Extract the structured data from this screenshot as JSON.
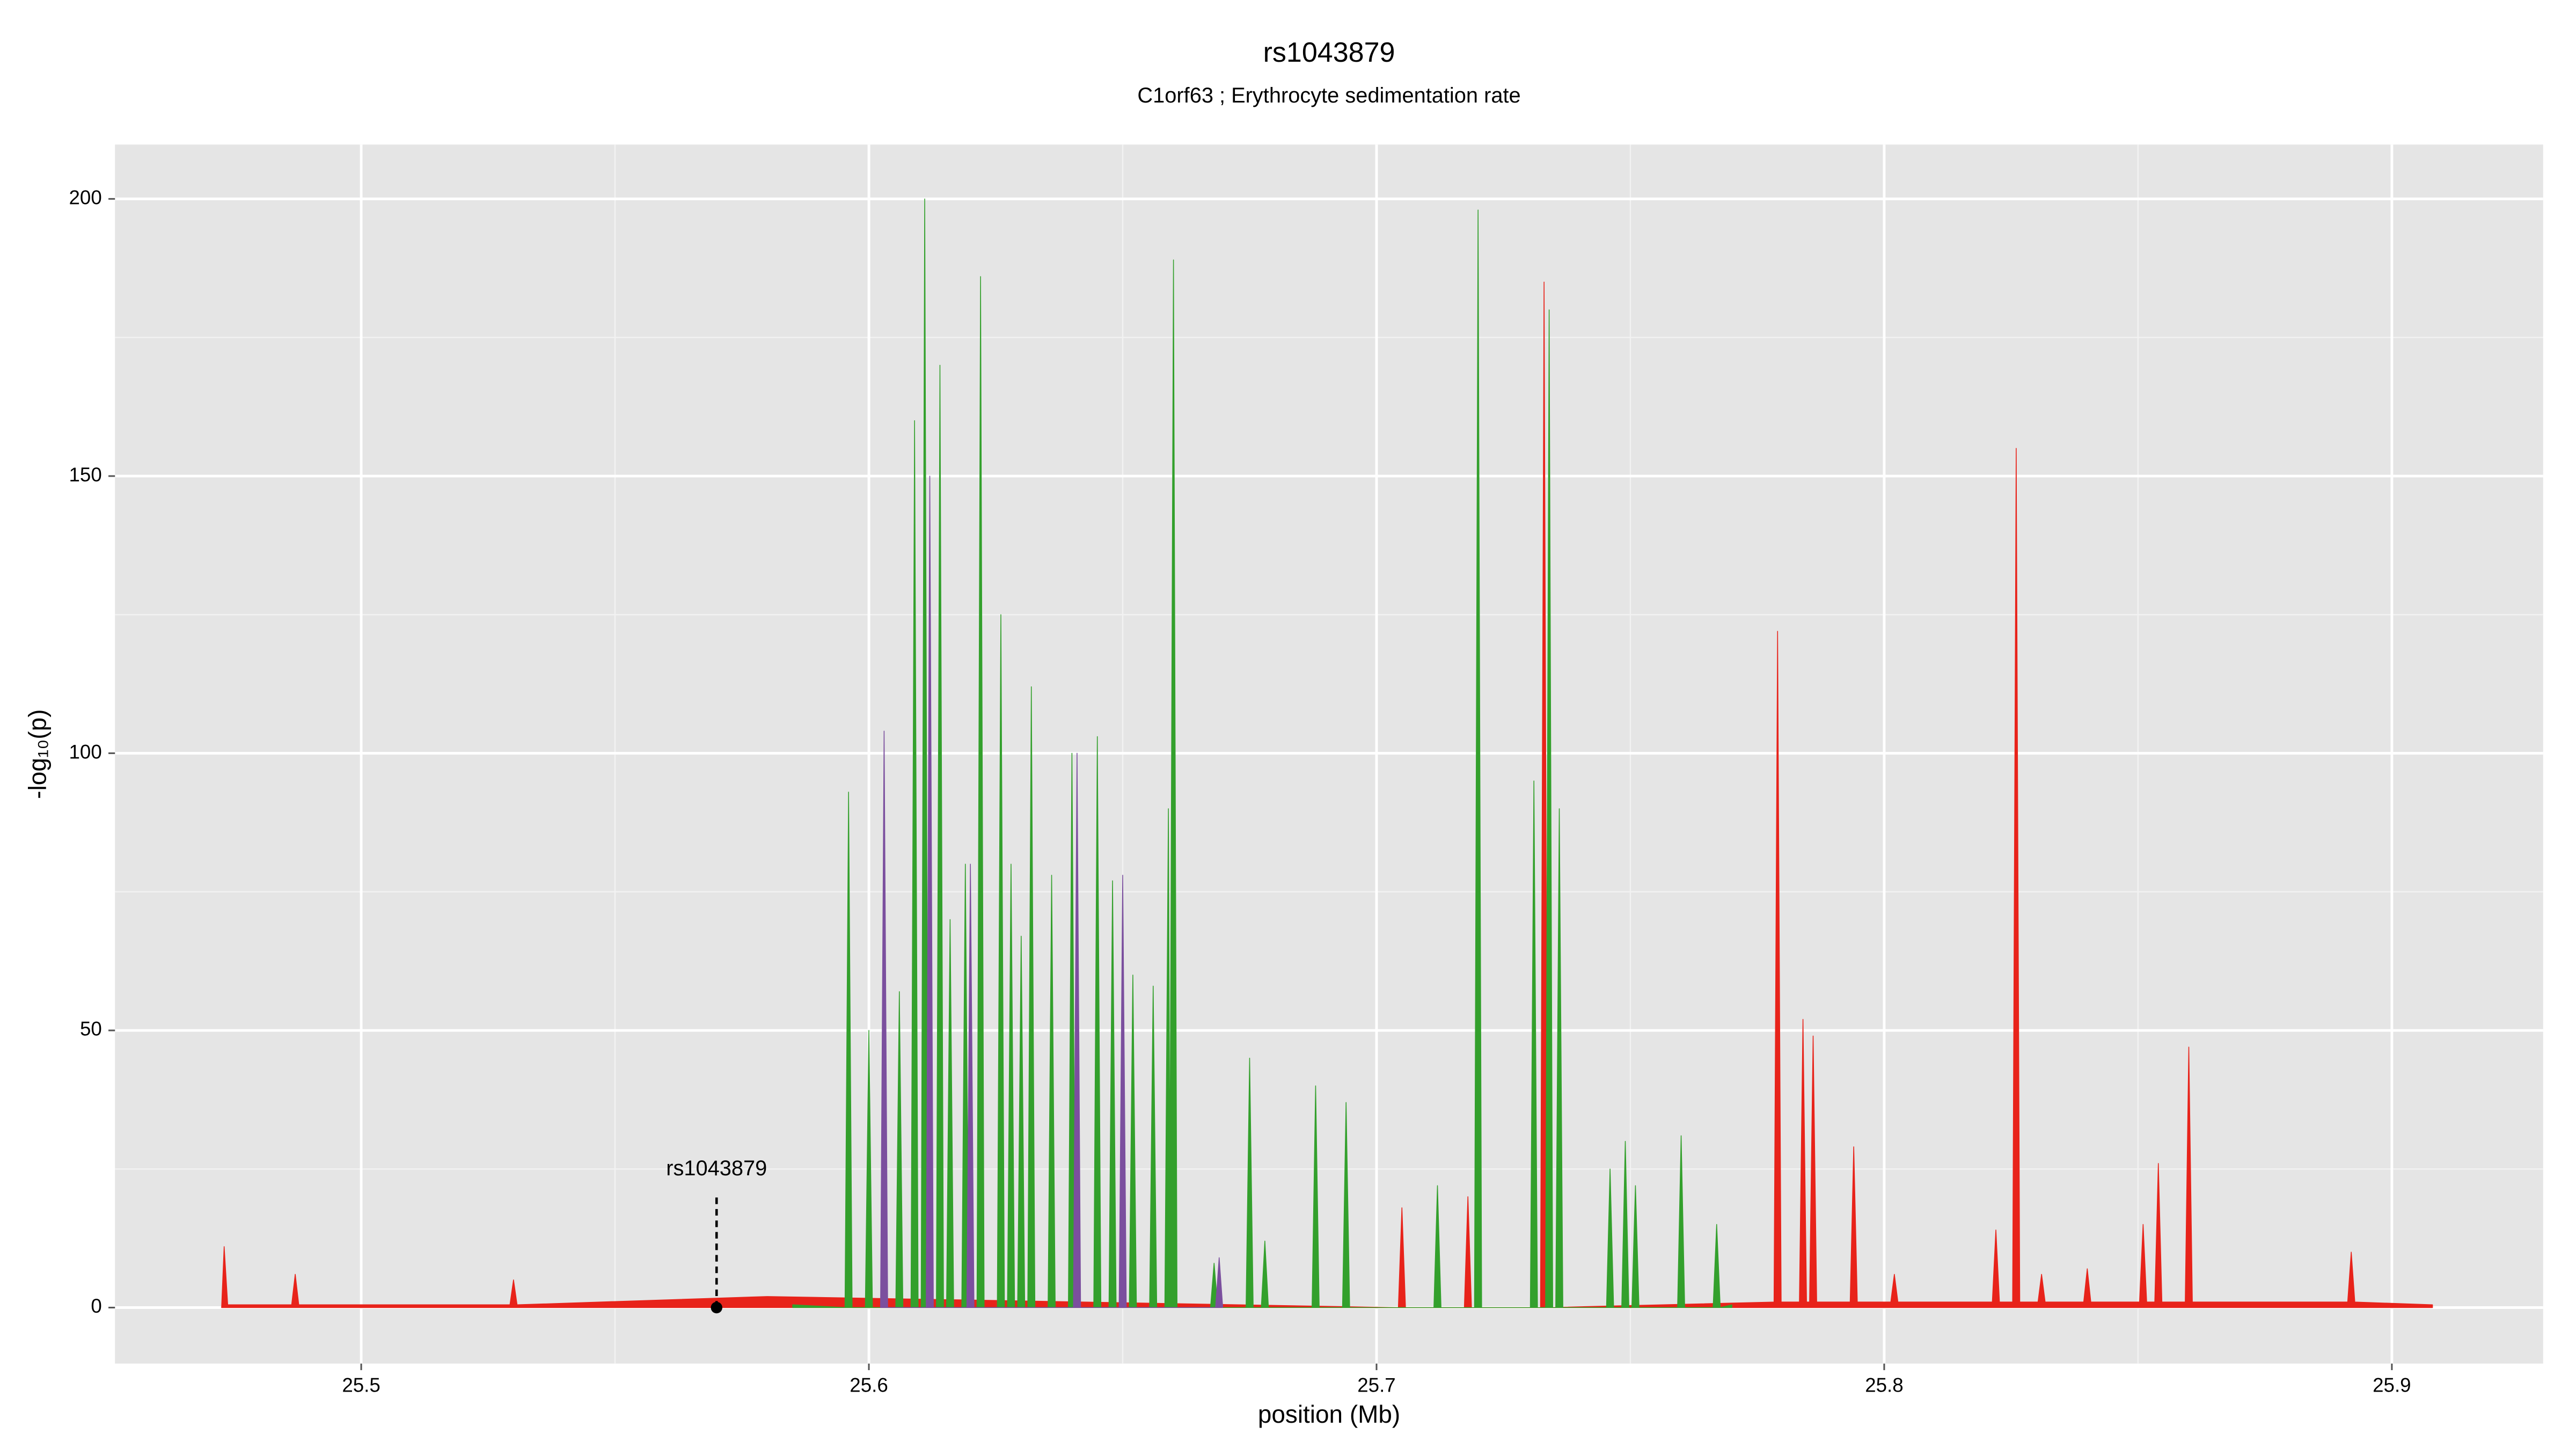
{
  "chart_data": {
    "type": "area",
    "title": "rs1043879",
    "subtitle": "C1orf63 ; Erythrocyte sedimentation rate",
    "x_label": "position (Mb)",
    "y_label": "-log₁₀(p)",
    "xlim": [
      25.4515,
      25.9298
    ],
    "ylim": [
      -10.1,
      209.8
    ],
    "xticks": [
      25.5,
      25.6,
      25.7,
      25.8,
      25.9
    ],
    "yticks": [
      0,
      50,
      100,
      150,
      200
    ],
    "xminorticks": [
      25.55,
      25.65,
      25.75,
      25.85
    ],
    "yminorticks": [
      25,
      75,
      125,
      175
    ],
    "grid": true,
    "series": [
      {
        "color": "#e8231a",
        "x": [
          25.4725,
          25.473,
          25.4737,
          25.4863,
          25.487,
          25.4877,
          25.5293,
          25.53,
          25.5307,
          25.58,
          25.7043,
          25.705,
          25.7057,
          25.7173,
          25.718,
          25.7187,
          25.7323,
          25.733,
          25.7337,
          25.7783,
          25.779,
          25.7797,
          25.7833,
          25.784,
          25.7847,
          25.7853,
          25.786,
          25.7867,
          25.7933,
          25.794,
          25.7947,
          25.8013,
          25.802,
          25.8027,
          25.8213,
          25.822,
          25.8227,
          25.8253,
          25.826,
          25.8267,
          25.8303,
          25.831,
          25.8317,
          25.8393,
          25.84,
          25.8407,
          25.8503,
          25.851,
          25.8517,
          25.8533,
          25.854,
          25.8547,
          25.8593,
          25.86,
          25.8607,
          25.8913,
          25.892,
          25.8927,
          25.908
        ],
        "values": [
          0,
          11,
          0.5,
          0.5,
          6,
          0.5,
          0.5,
          5,
          0.5,
          2,
          0,
          18,
          0,
          0,
          20,
          0,
          0,
          185,
          0,
          1,
          122,
          1,
          1,
          52,
          1,
          1,
          49,
          1,
          1,
          29,
          1,
          1,
          6,
          1,
          1,
          14,
          1,
          1,
          155,
          1,
          1,
          6,
          1,
          1,
          7,
          1,
          1,
          15,
          1,
          1,
          26,
          1,
          1,
          47,
          1,
          1,
          10,
          1,
          0.5
        ]
      },
      {
        "color": "#33a02c",
        "x": [
          25.585,
          25.5953,
          25.596,
          25.5967,
          25.5993,
          25.6,
          25.6007,
          25.6053,
          25.606,
          25.6067,
          25.6083,
          25.609,
          25.6097,
          25.6103,
          25.611,
          25.6117,
          25.6133,
          25.614,
          25.6147,
          25.6153,
          25.616,
          25.6167,
          25.6183,
          25.619,
          25.6197,
          25.6213,
          25.622,
          25.6227,
          25.6253,
          25.626,
          25.6267,
          25.6273,
          25.628,
          25.6287,
          25.6293,
          25.63,
          25.6307,
          25.6313,
          25.632,
          25.6327,
          25.6353,
          25.636,
          25.6367,
          25.6393,
          25.64,
          25.6407,
          25.6443,
          25.645,
          25.6457,
          25.6473,
          25.648,
          25.6487,
          25.6513,
          25.652,
          25.6527,
          25.6553,
          25.656,
          25.6567,
          25.6583,
          25.659,
          25.6593,
          25.66,
          25.6607,
          25.6673,
          25.668,
          25.6687,
          25.6743,
          25.675,
          25.6757,
          25.6773,
          25.678,
          25.6787,
          25.6873,
          25.688,
          25.6887,
          25.6933,
          25.694,
          25.6947,
          25.7113,
          25.712,
          25.7127,
          25.7193,
          25.72,
          25.7207,
          25.7303,
          25.731,
          25.7317,
          25.7333,
          25.734,
          25.7347,
          25.7353,
          25.736,
          25.7367,
          25.7453,
          25.746,
          25.7467,
          25.7483,
          25.749,
          25.7497,
          25.7503,
          25.751,
          25.7517,
          25.7593,
          25.76,
          25.7607,
          25.7663,
          25.767,
          25.7677,
          25.77
        ],
        "values": [
          0.5,
          0,
          93,
          0,
          0,
          50,
          0,
          0,
          57,
          0,
          0,
          160,
          0,
          0,
          200,
          0,
          0,
          170,
          0,
          0,
          70,
          0,
          0,
          80,
          0,
          0,
          186,
          0,
          0,
          125,
          0,
          0,
          80,
          0,
          0,
          67,
          0,
          0,
          112,
          0,
          0,
          78,
          0,
          0,
          100,
          0,
          0,
          103,
          0,
          0,
          77,
          0,
          0,
          60,
          0,
          0,
          58,
          0,
          0,
          90,
          20,
          189,
          0,
          0,
          8,
          0,
          0,
          45,
          0,
          0,
          12,
          0,
          0,
          40,
          0,
          0,
          37,
          0,
          0,
          22,
          0,
          0,
          198,
          0,
          0,
          95,
          0,
          0,
          180,
          0,
          0,
          90,
          0,
          0,
          25,
          0,
          0,
          30,
          0,
          0,
          22,
          0,
          0,
          31,
          0,
          0,
          15,
          0,
          0.5
        ]
      },
      {
        "color": "#7b4f9e",
        "x": [
          25.6023,
          25.603,
          25.6037,
          25.6113,
          25.612,
          25.6127,
          25.6193,
          25.62,
          25.6207,
          25.6403,
          25.641,
          25.6417,
          25.6493,
          25.65,
          25.6507,
          25.6683,
          25.669,
          25.6697
        ],
        "values": [
          0,
          104,
          0,
          0,
          150,
          0,
          0,
          80,
          0,
          0,
          100,
          0,
          0,
          78,
          0,
          0,
          9,
          0
        ]
      }
    ],
    "annotation": {
      "label": "rs1043879",
      "x": 25.57,
      "y": 0
    }
  }
}
